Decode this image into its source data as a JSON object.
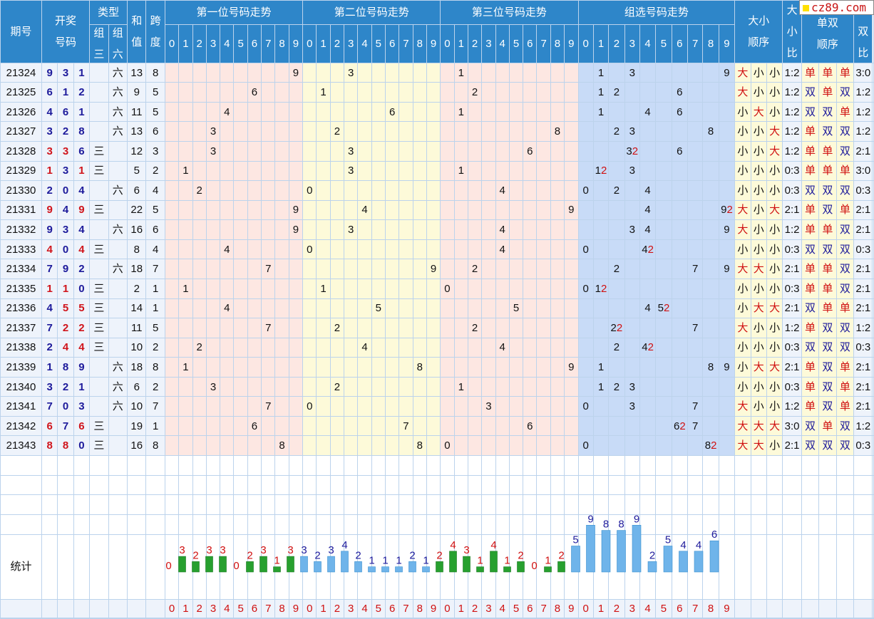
{
  "logo": "cz89.com",
  "headers": {
    "period": "期号",
    "draw_top": "开奖",
    "draw_bottom": "号码",
    "type": "类型",
    "type_g3_top": "组",
    "type_g3_bottom": "三",
    "type_g6_top": "组",
    "type_g6_bottom": "六",
    "sum_top": "和",
    "sum_bottom": "值",
    "span_top": "跨",
    "span_bottom": "度",
    "pos1": "第一位号码走势",
    "pos2": "第二位号码走势",
    "pos3": "第三位号码走势",
    "group": "组选号码走势",
    "size_order_top": "大小",
    "size_order_bottom": "顺序",
    "size_ratio_1": "大",
    "size_ratio_2": "小",
    "size_ratio_3": "比",
    "odd_order_top": "单双",
    "odd_order_bottom": "顺序",
    "odd_ratio_1": "单",
    "odd_ratio_2": "双",
    "odd_ratio_3": "比",
    "digits": [
      "0",
      "1",
      "2",
      "3",
      "4",
      "5",
      "6",
      "7",
      "8",
      "9"
    ]
  },
  "rows": [
    {
      "period": "21324",
      "n": [
        9,
        3,
        1
      ],
      "type": "六",
      "sum": "13",
      "span": "8",
      "g": [
        "1",
        "3",
        "9"
      ],
      "sz": [
        "大",
        "小",
        "小"
      ],
      "szr": "1:2",
      "od": [
        "单",
        "单",
        "单"
      ],
      "odr": "3:0"
    },
    {
      "period": "21325",
      "n": [
        6,
        1,
        2
      ],
      "type": "六",
      "sum": "9",
      "span": "5",
      "g": [
        "1",
        "2",
        "6"
      ],
      "sz": [
        "大",
        "小",
        "小"
      ],
      "szr": "1:2",
      "od": [
        "双",
        "单",
        "双"
      ],
      "odr": "1:2"
    },
    {
      "period": "21326",
      "n": [
        4,
        6,
        1
      ],
      "type": "六",
      "sum": "11",
      "span": "5",
      "g": [
        "1",
        "4",
        "6"
      ],
      "sz": [
        "小",
        "大",
        "小"
      ],
      "szr": "1:2",
      "od": [
        "双",
        "双",
        "单"
      ],
      "odr": "1:2"
    },
    {
      "period": "21327",
      "n": [
        3,
        2,
        8
      ],
      "type": "六",
      "sum": "13",
      "span": "6",
      "g": [
        "2",
        "3",
        "8"
      ],
      "sz": [
        "小",
        "小",
        "大"
      ],
      "szr": "1:2",
      "od": [
        "单",
        "双",
        "双"
      ],
      "odr": "1:2"
    },
    {
      "period": "21328",
      "n": [
        3,
        3,
        6
      ],
      "type": "三",
      "sum": "12",
      "span": "3",
      "g": [
        "32",
        "6"
      ],
      "sz": [
        "小",
        "小",
        "大"
      ],
      "szr": "1:2",
      "od": [
        "单",
        "单",
        "双"
      ],
      "odr": "2:1"
    },
    {
      "period": "21329",
      "n": [
        1,
        3,
        1
      ],
      "type": "三",
      "sum": "5",
      "span": "2",
      "g": [
        "12",
        "3"
      ],
      "sz": [
        "小",
        "小",
        "小"
      ],
      "szr": "0:3",
      "od": [
        "单",
        "单",
        "单"
      ],
      "odr": "3:0"
    },
    {
      "period": "21330",
      "n": [
        2,
        0,
        4
      ],
      "type": "六",
      "sum": "6",
      "span": "4",
      "g": [
        "0",
        "2",
        "4"
      ],
      "sz": [
        "小",
        "小",
        "小"
      ],
      "szr": "0:3",
      "od": [
        "双",
        "双",
        "双"
      ],
      "odr": "0:3"
    },
    {
      "period": "21331",
      "n": [
        9,
        4,
        9
      ],
      "type": "三",
      "sum": "22",
      "span": "5",
      "g": [
        "4",
        "92"
      ],
      "sz": [
        "大",
        "小",
        "大"
      ],
      "szr": "2:1",
      "od": [
        "单",
        "双",
        "单"
      ],
      "odr": "2:1"
    },
    {
      "period": "21332",
      "n": [
        9,
        3,
        4
      ],
      "type": "六",
      "sum": "16",
      "span": "6",
      "g": [
        "3",
        "4",
        "9"
      ],
      "sz": [
        "大",
        "小",
        "小"
      ],
      "szr": "1:2",
      "od": [
        "单",
        "单",
        "双"
      ],
      "odr": "2:1"
    },
    {
      "period": "21333",
      "n": [
        4,
        0,
        4
      ],
      "type": "三",
      "sum": "8",
      "span": "4",
      "g": [
        "0",
        "42"
      ],
      "sz": [
        "小",
        "小",
        "小"
      ],
      "szr": "0:3",
      "od": [
        "双",
        "双",
        "双"
      ],
      "odr": "0:3"
    },
    {
      "period": "21334",
      "n": [
        7,
        9,
        2
      ],
      "type": "六",
      "sum": "18",
      "span": "7",
      "g": [
        "2",
        "7",
        "9"
      ],
      "sz": [
        "大",
        "大",
        "小"
      ],
      "szr": "2:1",
      "od": [
        "单",
        "单",
        "双"
      ],
      "odr": "2:1"
    },
    {
      "period": "21335",
      "n": [
        1,
        1,
        0
      ],
      "type": "三",
      "sum": "2",
      "span": "1",
      "g": [
        "0",
        "12"
      ],
      "sz": [
        "小",
        "小",
        "小"
      ],
      "szr": "0:3",
      "od": [
        "单",
        "单",
        "双"
      ],
      "odr": "2:1"
    },
    {
      "period": "21336",
      "n": [
        4,
        5,
        5
      ],
      "type": "三",
      "sum": "14",
      "span": "1",
      "g": [
        "4",
        "52"
      ],
      "sz": [
        "小",
        "大",
        "大"
      ],
      "szr": "2:1",
      "od": [
        "双",
        "单",
        "单"
      ],
      "odr": "2:1"
    },
    {
      "period": "21337",
      "n": [
        7,
        2,
        2
      ],
      "type": "三",
      "sum": "11",
      "span": "5",
      "g": [
        "22",
        "7"
      ],
      "sz": [
        "大",
        "小",
        "小"
      ],
      "szr": "1:2",
      "od": [
        "单",
        "双",
        "双"
      ],
      "odr": "1:2"
    },
    {
      "period": "21338",
      "n": [
        2,
        4,
        4
      ],
      "type": "三",
      "sum": "10",
      "span": "2",
      "g": [
        "2",
        "42"
      ],
      "sz": [
        "小",
        "小",
        "小"
      ],
      "szr": "0:3",
      "od": [
        "双",
        "双",
        "双"
      ],
      "odr": "0:3"
    },
    {
      "period": "21339",
      "n": [
        1,
        8,
        9
      ],
      "type": "六",
      "sum": "18",
      "span": "8",
      "g": [
        "1",
        "8",
        "9"
      ],
      "sz": [
        "小",
        "大",
        "大"
      ],
      "szr": "2:1",
      "od": [
        "单",
        "双",
        "单"
      ],
      "odr": "2:1"
    },
    {
      "period": "21340",
      "n": [
        3,
        2,
        1
      ],
      "type": "六",
      "sum": "6",
      "span": "2",
      "g": [
        "1",
        "2",
        "3"
      ],
      "sz": [
        "小",
        "小",
        "小"
      ],
      "szr": "0:3",
      "od": [
        "单",
        "双",
        "单"
      ],
      "odr": "2:1"
    },
    {
      "period": "21341",
      "n": [
        7,
        0,
        3
      ],
      "type": "六",
      "sum": "10",
      "span": "7",
      "g": [
        "0",
        "3",
        "7"
      ],
      "sz": [
        "大",
        "小",
        "小"
      ],
      "szr": "1:2",
      "od": [
        "单",
        "双",
        "单"
      ],
      "odr": "2:1"
    },
    {
      "period": "21342",
      "n": [
        6,
        7,
        6
      ],
      "type": "三",
      "sum": "19",
      "span": "1",
      "g": [
        "62",
        "7"
      ],
      "sz": [
        "大",
        "大",
        "大"
      ],
      "szr": "3:0",
      "od": [
        "双",
        "单",
        "双"
      ],
      "odr": "1:2"
    },
    {
      "period": "21343",
      "n": [
        8,
        8,
        0
      ],
      "type": "三",
      "sum": "16",
      "span": "8",
      "g": [
        "0",
        "82"
      ],
      "sz": [
        "大",
        "大",
        "小"
      ],
      "szr": "2:1",
      "od": [
        "双",
        "双",
        "双"
      ],
      "odr": "0:3"
    }
  ],
  "stats_label": "统计",
  "stats": {
    "pos1": [
      "0",
      "3",
      "2",
      "3",
      "3",
      "0",
      "2",
      "3",
      "1",
      "3"
    ],
    "pos2": [
      "3",
      "2",
      "3",
      "4",
      "2",
      "1",
      "1",
      "1",
      "2",
      "1"
    ],
    "pos3": [
      "2",
      "4",
      "3",
      "1",
      "4",
      "1",
      "2",
      "0",
      "1",
      "2"
    ],
    "group": [
      "5",
      "9",
      "8",
      "8",
      "9",
      "2",
      "5",
      "4",
      "4",
      "6"
    ]
  },
  "colors": {
    "header": "#2e86c9",
    "pos_pink": "#fde7e2",
    "pos_yellow": "#fdfad9",
    "group_blue": "#c8dbf7",
    "digit_blue": "#1d1a9b",
    "digit_red": "#d0141b",
    "bar_green": "#27a02f",
    "bar_blue": "#6fb4ea"
  }
}
